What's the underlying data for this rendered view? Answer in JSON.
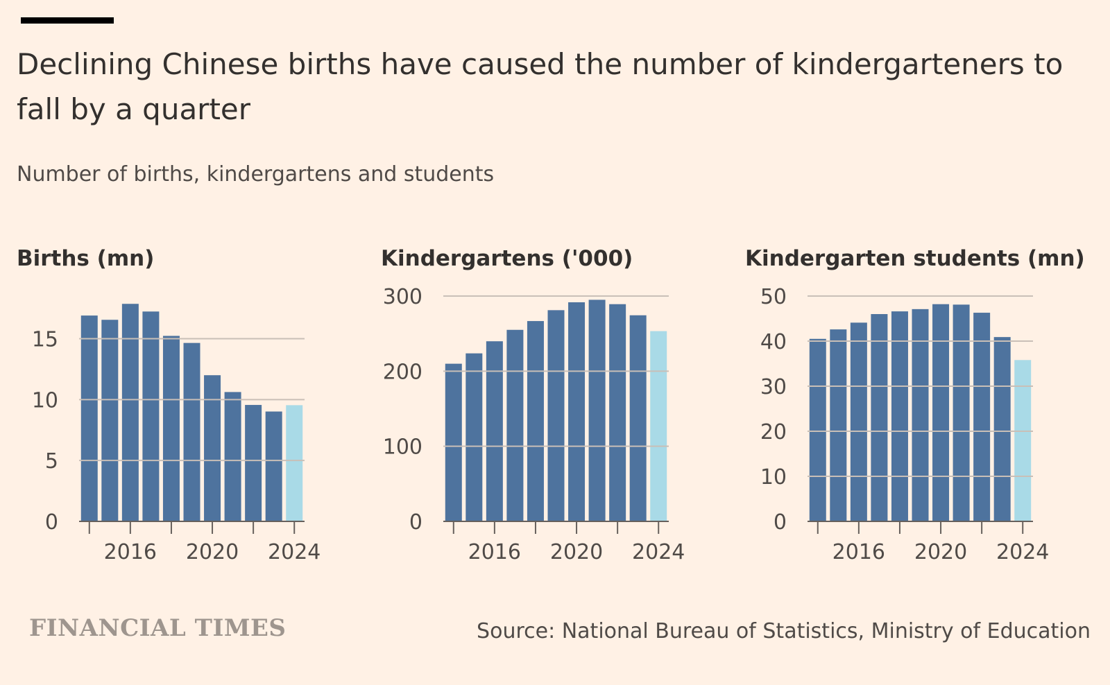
{
  "header": {
    "title": "Declining Chinese births have caused the number of kindergarteners to fall by a quarter",
    "subtitle": "Number of births, kindergartens and students"
  },
  "footer": {
    "brand": "FINANCIAL TIMES",
    "source": "Source: National Bureau of Statistics, Ministry of Education"
  },
  "colors": {
    "bar": "#4e739e",
    "highlight": "#a9dae7",
    "grid": "#c9bfb7",
    "axis": "#66605c",
    "background": "#fff1e5"
  },
  "chart_data": [
    {
      "type": "bar",
      "title": "Births (mn)",
      "x": [
        2014,
        2015,
        2016,
        2017,
        2018,
        2019,
        2020,
        2021,
        2022,
        2023,
        2024
      ],
      "values": [
        16.9,
        16.55,
        17.86,
        17.23,
        15.23,
        14.65,
        12.0,
        10.62,
        9.56,
        9.02,
        9.54
      ],
      "highlight_last": true,
      "ylim": [
        0,
        18.5
      ],
      "yticks": [
        0,
        5,
        10,
        15
      ],
      "yticklabels": [
        "0",
        "5",
        "10",
        "15"
      ],
      "xticklabels": [
        {
          "x": 2016,
          "label": "2016"
        },
        {
          "x": 2020,
          "label": "2020"
        },
        {
          "x": 2024,
          "label": "2024"
        }
      ],
      "grid": true
    },
    {
      "type": "bar",
      "title": "Kindergartens ('000)",
      "x": [
        2014,
        2015,
        2016,
        2017,
        2018,
        2019,
        2020,
        2021,
        2022,
        2023,
        2024
      ],
      "values": [
        209.9,
        223.7,
        239.8,
        255.0,
        266.7,
        281.2,
        291.7,
        295.0,
        289.2,
        274.4,
        253.3
      ],
      "highlight_last": true,
      "ylim": [
        0,
        300
      ],
      "yticks": [
        0,
        100,
        200,
        300
      ],
      "yticklabels": [
        "0",
        "100",
        "200",
        "300"
      ],
      "xticklabels": [
        {
          "x": 2016,
          "label": "2016"
        },
        {
          "x": 2020,
          "label": "2020"
        },
        {
          "x": 2024,
          "label": "2024"
        }
      ],
      "grid": true
    },
    {
      "type": "bar",
      "title": "Kindergarten students (mn)",
      "x": [
        2014,
        2015,
        2016,
        2017,
        2018,
        2019,
        2020,
        2021,
        2022,
        2023,
        2024
      ],
      "values": [
        40.5,
        42.6,
        44.1,
        46.0,
        46.6,
        47.1,
        48.2,
        48.1,
        46.3,
        40.9,
        35.8
      ],
      "highlight_last": true,
      "ylim": [
        0,
        50
      ],
      "yticks": [
        0,
        10,
        20,
        30,
        40,
        50
      ],
      "yticklabels": [
        "0",
        "10",
        "20",
        "30",
        "40",
        "50"
      ],
      "xticklabels": [
        {
          "x": 2016,
          "label": "2016"
        },
        {
          "x": 2020,
          "label": "2020"
        },
        {
          "x": 2024,
          "label": "2024"
        }
      ],
      "grid": true
    }
  ]
}
